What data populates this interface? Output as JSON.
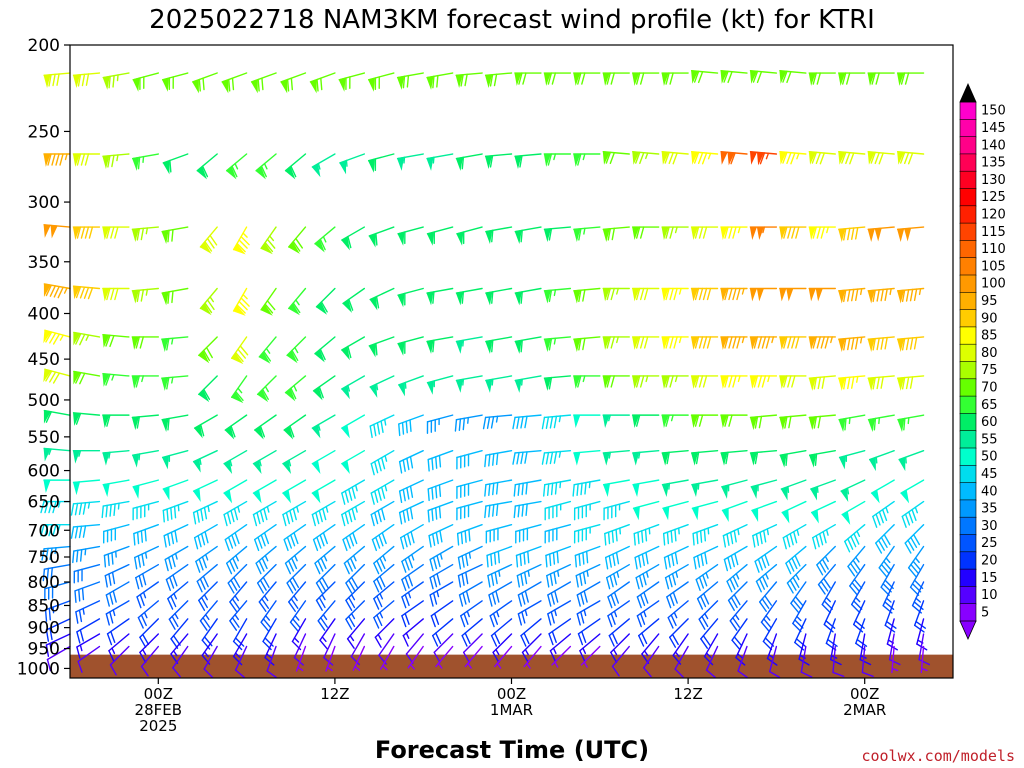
{
  "chart_data": {
    "type": "wind_barb_profile",
    "title": "2025022718 NAM3KM forecast wind profile (kt) for KTRI",
    "xlabel": "Forecast Time (UTC)",
    "ylabel": "",
    "x_ticks": [
      {
        "hour": 6,
        "lines": [
          "00Z",
          "28FEB",
          "2025"
        ]
      },
      {
        "hour": 18,
        "lines": [
          "12Z"
        ]
      },
      {
        "hour": 30,
        "lines": [
          "00Z",
          "1MAR"
        ]
      },
      {
        "hour": 42,
        "lines": [
          "12Z"
        ]
      },
      {
        "hour": 54,
        "lines": [
          "00Z",
          "2MAR"
        ]
      }
    ],
    "x_range_hours": [
      0,
      60
    ],
    "pressure_levels_hpa": [
      200,
      250,
      300,
      350,
      400,
      450,
      500,
      550,
      600,
      650,
      700,
      750,
      800,
      850,
      900,
      950,
      1000
    ],
    "y_range_hpa": [
      200,
      1025
    ],
    "y_scale": "log",
    "ground_pressure_hpa": 965,
    "colorbar": {
      "unit": "kt",
      "ticks": [
        150,
        145,
        140,
        135,
        130,
        125,
        120,
        115,
        110,
        105,
        100,
        95,
        90,
        85,
        80,
        75,
        70,
        65,
        60,
        55,
        50,
        45,
        40,
        35,
        30,
        25,
        20,
        15,
        10,
        5
      ],
      "colors": [
        "#ff00cc",
        "#ff00aa",
        "#ff0088",
        "#ff0055",
        "#ff0022",
        "#ff0000",
        "#ff2000",
        "#ff4400",
        "#ff6600",
        "#ff8000",
        "#ff9900",
        "#ffb000",
        "#ffcc00",
        "#ffff00",
        "#ddff00",
        "#aaff00",
        "#66ff00",
        "#33ff33",
        "#00ee66",
        "#00ee99",
        "#00ffcc",
        "#00ddee",
        "#00bbff",
        "#0099ff",
        "#0077ff",
        "#0055ff",
        "#0033ff",
        "#2200ff",
        "#5500ff",
        "#8800ff"
      ],
      "extend": "both"
    },
    "barb_times_hours": [
      0,
      2,
      4,
      6,
      8,
      10,
      12,
      14,
      16,
      18,
      20,
      22,
      24,
      26,
      28,
      30,
      32,
      34,
      36,
      38,
      40,
      42,
      44,
      46,
      48,
      50,
      52,
      54,
      56,
      58
    ],
    "barb_levels": [
      {
        "p": 215,
        "dir": [
          265,
          265,
          260,
          255,
          255,
          250,
          250,
          250,
          250,
          250,
          255,
          255,
          260,
          260,
          265,
          265,
          270,
          270,
          270,
          270,
          270,
          270,
          275,
          275,
          275,
          275,
          270,
          270,
          270,
          270
        ],
        "spd": [
          80,
          80,
          75,
          70,
          70,
          70,
          70,
          70,
          70,
          70,
          70,
          70,
          70,
          70,
          70,
          70,
          70,
          70,
          70,
          70,
          70,
          70,
          70,
          70,
          70,
          70,
          70,
          70,
          70,
          70
        ]
      },
      {
        "p": 265,
        "dir": [
          270,
          270,
          265,
          260,
          250,
          230,
          230,
          230,
          230,
          240,
          250,
          255,
          260,
          260,
          260,
          265,
          265,
          270,
          270,
          275,
          275,
          275,
          275,
          275,
          275,
          275,
          275,
          275,
          275,
          275
        ],
        "spd": [
          95,
          80,
          75,
          65,
          60,
          60,
          65,
          65,
          60,
          55,
          55,
          60,
          55,
          55,
          60,
          60,
          60,
          65,
          65,
          70,
          75,
          80,
          85,
          110,
          115,
          85,
          80,
          80,
          80,
          80
        ]
      },
      {
        "p": 320,
        "dir": [
          275,
          270,
          270,
          265,
          260,
          220,
          210,
          215,
          220,
          230,
          240,
          250,
          255,
          255,
          255,
          260,
          260,
          265,
          265,
          265,
          270,
          270,
          270,
          270,
          270,
          270,
          270,
          265,
          265,
          265
        ],
        "spd": [
          100,
          90,
          80,
          75,
          70,
          80,
          85,
          75,
          70,
          65,
          60,
          60,
          60,
          60,
          60,
          60,
          60,
          60,
          65,
          70,
          70,
          75,
          80,
          85,
          105,
          90,
          85,
          90,
          100,
          100
        ]
      },
      {
        "p": 375,
        "dir": [
          280,
          275,
          270,
          265,
          260,
          220,
          210,
          215,
          220,
          225,
          235,
          245,
          255,
          260,
          260,
          260,
          260,
          265,
          265,
          270,
          270,
          270,
          270,
          270,
          270,
          270,
          270,
          265,
          265,
          265
        ],
        "spd": [
          95,
          90,
          80,
          75,
          70,
          75,
          85,
          70,
          65,
          60,
          60,
          60,
          60,
          60,
          60,
          60,
          60,
          65,
          70,
          75,
          80,
          85,
          90,
          95,
          100,
          100,
          100,
          95,
          95,
          95
        ]
      },
      {
        "p": 425,
        "dir": [
          285,
          280,
          275,
          270,
          265,
          225,
          215,
          220,
          225,
          230,
          240,
          250,
          255,
          260,
          260,
          260,
          260,
          265,
          265,
          270,
          270,
          270,
          270,
          270,
          270,
          270,
          270,
          265,
          265,
          265
        ],
        "spd": [
          85,
          75,
          70,
          70,
          65,
          70,
          80,
          65,
          65,
          60,
          60,
          60,
          60,
          60,
          55,
          60,
          60,
          65,
          70,
          75,
          80,
          85,
          90,
          95,
          95,
          90,
          95,
          95,
          90,
          90
        ]
      },
      {
        "p": 470,
        "dir": [
          285,
          280,
          275,
          270,
          265,
          225,
          215,
          225,
          230,
          235,
          240,
          245,
          250,
          255,
          260,
          260,
          260,
          265,
          270,
          270,
          270,
          270,
          270,
          270,
          270,
          270,
          265,
          265,
          265,
          265
        ],
        "spd": [
          80,
          70,
          65,
          65,
          65,
          60,
          65,
          65,
          65,
          60,
          55,
          55,
          55,
          55,
          55,
          55,
          55,
          60,
          65,
          70,
          75,
          75,
          80,
          85,
          85,
          80,
          80,
          85,
          80,
          80
        ]
      },
      {
        "p": 520,
        "dir": [
          280,
          275,
          270,
          265,
          260,
          240,
          235,
          235,
          235,
          240,
          240,
          245,
          250,
          255,
          260,
          265,
          265,
          265,
          270,
          270,
          270,
          270,
          270,
          270,
          265,
          265,
          265,
          260,
          260,
          260
        ],
        "spd": [
          60,
          60,
          60,
          60,
          60,
          60,
          60,
          60,
          60,
          55,
          50,
          45,
          40,
          35,
          35,
          35,
          40,
          45,
          50,
          55,
          60,
          65,
          70,
          70,
          70,
          70,
          70,
          65,
          65,
          65
        ]
      },
      {
        "p": 570,
        "dir": [
          275,
          270,
          265,
          260,
          255,
          245,
          240,
          240,
          240,
          240,
          240,
          240,
          245,
          250,
          255,
          260,
          265,
          265,
          265,
          265,
          265,
          265,
          265,
          265,
          265,
          260,
          260,
          255,
          250,
          250
        ],
        "spd": [
          55,
          55,
          55,
          55,
          55,
          55,
          55,
          55,
          55,
          50,
          50,
          45,
          40,
          40,
          40,
          40,
          40,
          45,
          50,
          55,
          55,
          60,
          60,
          60,
          60,
          60,
          60,
          55,
          55,
          55
        ]
      },
      {
        "p": 615,
        "dir": [
          270,
          265,
          260,
          255,
          250,
          245,
          240,
          240,
          240,
          240,
          240,
          240,
          245,
          250,
          255,
          260,
          260,
          260,
          260,
          260,
          260,
          260,
          260,
          255,
          255,
          250,
          250,
          245,
          240,
          240
        ],
        "spd": [
          50,
          50,
          50,
          50,
          50,
          50,
          50,
          50,
          50,
          50,
          45,
          45,
          40,
          40,
          40,
          40,
          40,
          45,
          45,
          50,
          50,
          55,
          55,
          55,
          55,
          55,
          55,
          55,
          50,
          50
        ]
      },
      {
        "p": 650,
        "dir": [
          270,
          265,
          260,
          255,
          250,
          245,
          240,
          240,
          240,
          240,
          240,
          240,
          245,
          250,
          255,
          260,
          260,
          255,
          255,
          255,
          255,
          255,
          255,
          250,
          250,
          245,
          245,
          240,
          235,
          235
        ],
        "spd": [
          45,
          45,
          45,
          45,
          45,
          45,
          45,
          45,
          45,
          45,
          45,
          40,
          40,
          40,
          40,
          40,
          40,
          45,
          45,
          45,
          50,
          50,
          50,
          50,
          50,
          50,
          50,
          50,
          45,
          45
        ]
      },
      {
        "p": 690,
        "dir": [
          270,
          265,
          255,
          250,
          245,
          240,
          235,
          235,
          235,
          235,
          235,
          235,
          240,
          245,
          250,
          255,
          255,
          255,
          255,
          250,
          250,
          250,
          250,
          245,
          245,
          240,
          240,
          230,
          225,
          225
        ],
        "spd": [
          45,
          40,
          40,
          40,
          40,
          40,
          40,
          40,
          40,
          40,
          40,
          40,
          40,
          40,
          40,
          40,
          40,
          40,
          45,
          45,
          45,
          45,
          45,
          45,
          45,
          45,
          45,
          45,
          40,
          40
        ]
      },
      {
        "p": 730,
        "dir": [
          265,
          260,
          250,
          245,
          240,
          235,
          230,
          230,
          230,
          230,
          230,
          230,
          235,
          240,
          245,
          250,
          250,
          250,
          250,
          245,
          245,
          245,
          245,
          240,
          235,
          230,
          225,
          220,
          215,
          215
        ],
        "spd": [
          35,
          35,
          35,
          35,
          35,
          35,
          35,
          35,
          35,
          35,
          35,
          35,
          35,
          35,
          35,
          40,
          40,
          40,
          40,
          40,
          40,
          40,
          40,
          40,
          40,
          40,
          35,
          35,
          35,
          35
        ]
      },
      {
        "p": 765,
        "dir": [
          260,
          255,
          245,
          240,
          235,
          230,
          225,
          225,
          225,
          225,
          225,
          230,
          235,
          240,
          245,
          245,
          245,
          245,
          245,
          240,
          240,
          240,
          235,
          230,
          230,
          225,
          220,
          215,
          210,
          210
        ],
        "spd": [
          30,
          30,
          30,
          30,
          30,
          30,
          30,
          30,
          30,
          30,
          30,
          30,
          30,
          30,
          30,
          35,
          35,
          35,
          35,
          35,
          35,
          35,
          35,
          35,
          35,
          35,
          30,
          30,
          30,
          30
        ]
      },
      {
        "p": 800,
        "dir": [
          255,
          250,
          240,
          235,
          230,
          225,
          220,
          220,
          220,
          225,
          225,
          230,
          235,
          240,
          240,
          240,
          240,
          240,
          240,
          235,
          235,
          235,
          230,
          225,
          220,
          215,
          210,
          210,
          205,
          205
        ],
        "spd": [
          30,
          30,
          30,
          25,
          25,
          25,
          25,
          25,
          25,
          25,
          25,
          25,
          25,
          25,
          30,
          30,
          30,
          30,
          30,
          30,
          30,
          30,
          30,
          30,
          30,
          30,
          25,
          25,
          25,
          25
        ]
      },
      {
        "p": 840,
        "dir": [
          250,
          245,
          240,
          230,
          225,
          220,
          220,
          215,
          215,
          220,
          225,
          230,
          235,
          235,
          235,
          235,
          240,
          240,
          240,
          235,
          235,
          230,
          225,
          220,
          215,
          210,
          205,
          205,
          200,
          200
        ],
        "spd": [
          25,
          25,
          25,
          25,
          25,
          25,
          25,
          25,
          25,
          25,
          25,
          25,
          20,
          20,
          25,
          25,
          25,
          25,
          25,
          25,
          25,
          25,
          25,
          25,
          25,
          25,
          20,
          20,
          20,
          20
        ]
      },
      {
        "p": 880,
        "dir": [
          245,
          240,
          235,
          225,
          220,
          215,
          210,
          210,
          210,
          215,
          220,
          225,
          230,
          230,
          230,
          230,
          230,
          235,
          235,
          230,
          230,
          225,
          220,
          215,
          210,
          205,
          200,
          200,
          195,
          195
        ],
        "spd": [
          20,
          20,
          20,
          20,
          20,
          20,
          20,
          20,
          15,
          15,
          15,
          15,
          15,
          20,
          20,
          20,
          20,
          20,
          20,
          20,
          20,
          20,
          20,
          20,
          20,
          20,
          20,
          20,
          15,
          15
        ]
      },
      {
        "p": 915,
        "dir": [
          245,
          240,
          230,
          225,
          220,
          215,
          210,
          205,
          205,
          205,
          210,
          215,
          220,
          225,
          225,
          225,
          225,
          230,
          230,
          225,
          220,
          215,
          210,
          205,
          200,
          195,
          190,
          190,
          190,
          190
        ],
        "spd": [
          15,
          15,
          15,
          15,
          15,
          15,
          15,
          15,
          10,
          10,
          10,
          10,
          10,
          10,
          10,
          15,
          15,
          15,
          15,
          15,
          15,
          15,
          15,
          15,
          15,
          15,
          15,
          15,
          10,
          10
        ]
      },
      {
        "p": 945,
        "dir": [
          240,
          235,
          225,
          220,
          215,
          210,
          205,
          200,
          200,
          200,
          205,
          210,
          215,
          220,
          220,
          220,
          220,
          225,
          225,
          220,
          215,
          210,
          205,
          200,
          195,
          190,
          185,
          185,
          185,
          185
        ],
        "spd": [
          10,
          10,
          10,
          10,
          10,
          10,
          10,
          10,
          5,
          5,
          5,
          5,
          5,
          5,
          5,
          5,
          5,
          5,
          5,
          10,
          10,
          10,
          10,
          10,
          10,
          10,
          10,
          10,
          5,
          5
        ]
      }
    ]
  },
  "credit": "coolwx.com/models",
  "colors": {
    "ground": "#a0522d",
    "axis": "#000000",
    "background": "#ffffff"
  }
}
